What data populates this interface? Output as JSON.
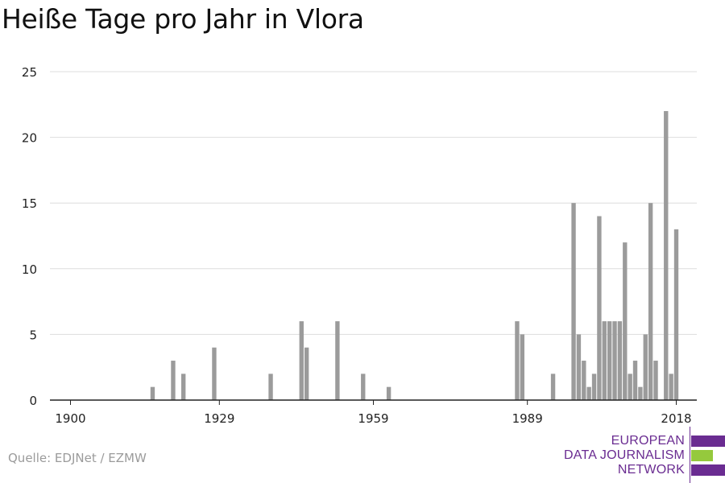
{
  "title": "Heiße Tage pro Jahr in Vlora",
  "source": "Quelle: EDJNet / EZMW",
  "logo": {
    "lines": [
      "EUROPEAN",
      "DATA JOURNALISM",
      "NETWORK"
    ],
    "text_color": "#6a2c91",
    "bar_colors": [
      "#6a2c91",
      "#95c93d",
      "#6a2c91"
    ]
  },
  "colors": {
    "bar": "#9b9b9b",
    "grid": "#dddddd",
    "axis": "#222222",
    "tick_label": "#222222"
  },
  "chart_data": {
    "type": "bar",
    "title": "Heiße Tage pro Jahr in Vlora",
    "xlabel": "",
    "ylabel": "",
    "xlim": [
      1896,
      2022
    ],
    "ylim": [
      0,
      25
    ],
    "x_ticks": [
      1900,
      1929,
      1959,
      1989,
      2018
    ],
    "y_ticks": [
      0,
      5,
      10,
      15,
      20,
      25
    ],
    "grid": true,
    "legend": "none",
    "points": [
      {
        "x": 1916,
        "y": 1
      },
      {
        "x": 1920,
        "y": 3
      },
      {
        "x": 1922,
        "y": 2
      },
      {
        "x": 1928,
        "y": 4
      },
      {
        "x": 1939,
        "y": 2
      },
      {
        "x": 1945,
        "y": 6
      },
      {
        "x": 1946,
        "y": 4
      },
      {
        "x": 1952,
        "y": 6
      },
      {
        "x": 1957,
        "y": 2
      },
      {
        "x": 1962,
        "y": 1
      },
      {
        "x": 1987,
        "y": 6
      },
      {
        "x": 1988,
        "y": 5
      },
      {
        "x": 1994,
        "y": 2
      },
      {
        "x": 1998,
        "y": 15
      },
      {
        "x": 1999,
        "y": 5
      },
      {
        "x": 2000,
        "y": 3
      },
      {
        "x": 2001,
        "y": 1
      },
      {
        "x": 2002,
        "y": 2
      },
      {
        "x": 2003,
        "y": 14
      },
      {
        "x": 2004,
        "y": 6
      },
      {
        "x": 2005,
        "y": 6
      },
      {
        "x": 2006,
        "y": 6
      },
      {
        "x": 2007,
        "y": 6
      },
      {
        "x": 2008,
        "y": 12
      },
      {
        "x": 2009,
        "y": 2
      },
      {
        "x": 2010,
        "y": 3
      },
      {
        "x": 2011,
        "y": 1
      },
      {
        "x": 2012,
        "y": 5
      },
      {
        "x": 2013,
        "y": 15
      },
      {
        "x": 2014,
        "y": 3
      },
      {
        "x": 2016,
        "y": 22
      },
      {
        "x": 2017,
        "y": 2
      },
      {
        "x": 2018,
        "y": 13
      }
    ]
  }
}
